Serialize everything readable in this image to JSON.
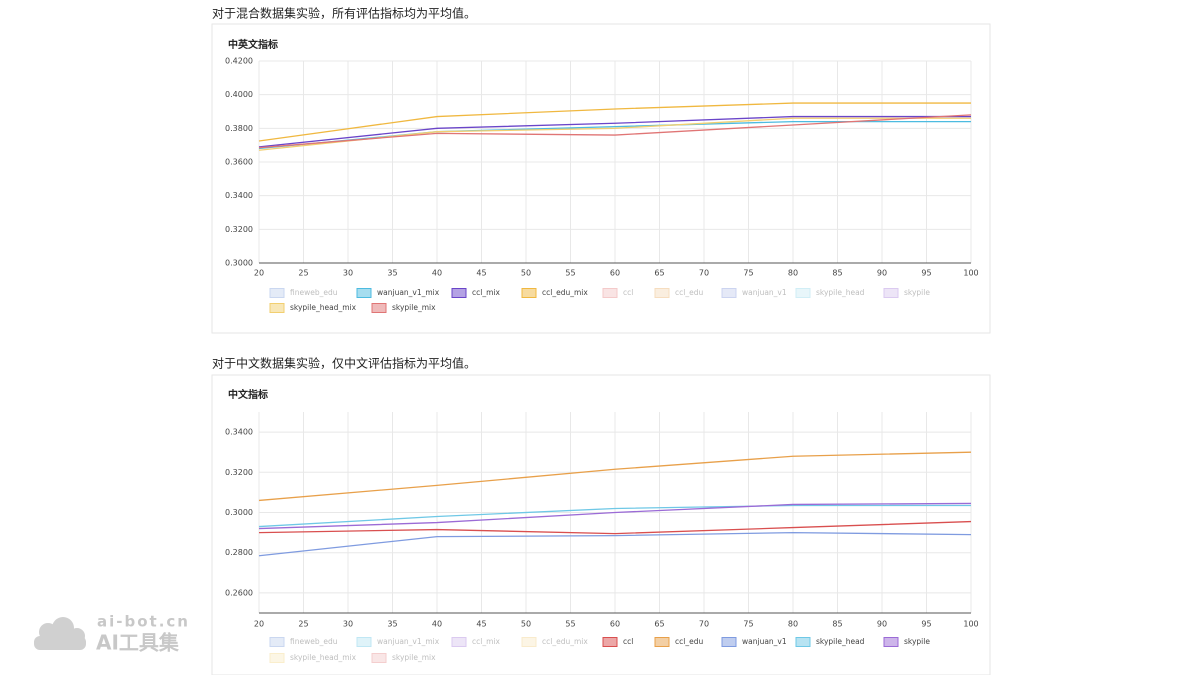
{
  "captions": [
    "对于混合数据集实验，所有评估指标均为平均值。",
    "对于中文数据集实验，仅中文评估指标为平均值。"
  ],
  "watermark": {
    "domain": "ai-bot.cn",
    "name": "AI工具集"
  },
  "chart_data": [
    {
      "type": "line",
      "title": "中英文指标",
      "grid": true,
      "x": [
        20,
        40,
        60,
        80,
        100
      ],
      "xlim": [
        20,
        100
      ],
      "xticks": [
        20,
        25,
        30,
        35,
        40,
        45,
        50,
        55,
        60,
        65,
        70,
        75,
        80,
        85,
        90,
        95,
        100
      ],
      "ylim": [
        0.3,
        0.42
      ],
      "yticks": [
        {
          "value": 0.3,
          "label": "0.3000"
        },
        {
          "value": 0.32,
          "label": "0.3200"
        },
        {
          "value": 0.34,
          "label": "0.3400"
        },
        {
          "value": 0.36,
          "label": "0.3600"
        },
        {
          "value": 0.38,
          "label": "0.3800"
        },
        {
          "value": 0.4,
          "label": "0.4000"
        },
        {
          "value": 0.42,
          "label": "0.4200"
        }
      ],
      "series": [
        {
          "name": "fineweb_edu",
          "color": "#6a8fd6",
          "hidden": true
        },
        {
          "name": "wanjuan_v1_mix",
          "color": "#4dbbe0",
          "values": [
            0.368,
            0.378,
            0.381,
            0.384,
            0.384
          ]
        },
        {
          "name": "ccl_mix",
          "color": "#6a45c9",
          "values": [
            0.369,
            0.38,
            0.383,
            0.387,
            0.387
          ]
        },
        {
          "name": "ccl_edu_mix",
          "color": "#f0b840",
          "values": [
            0.3725,
            0.387,
            0.3915,
            0.395,
            0.395
          ]
        },
        {
          "name": "ccl",
          "color": "#e06a6a",
          "hidden": true
        },
        {
          "name": "ccl_edu",
          "color": "#e8a04a",
          "hidden": true
        },
        {
          "name": "wanjuan_v1",
          "color": "#6f86d6",
          "hidden": true
        },
        {
          "name": "skypile_head",
          "color": "#7dd0e8",
          "hidden": true
        },
        {
          "name": "skypile",
          "color": "#9b6bd6",
          "hidden": true
        },
        {
          "name": "skypile_head_mix",
          "color": "#f2cf70",
          "values": [
            0.367,
            0.378,
            0.38,
            0.386,
            0.386
          ]
        },
        {
          "name": "skypile_mix",
          "color": "#e07575",
          "values": [
            0.3685,
            0.377,
            0.376,
            0.382,
            0.388
          ]
        }
      ]
    },
    {
      "type": "line",
      "title": "中文指标",
      "grid": true,
      "x": [
        20,
        40,
        60,
        80,
        100
      ],
      "xlim": [
        20,
        100
      ],
      "xticks": [
        20,
        25,
        30,
        35,
        40,
        45,
        50,
        55,
        60,
        65,
        70,
        75,
        80,
        85,
        90,
        95,
        100
      ],
      "ylim": [
        0.25,
        0.35
      ],
      "yticks": [
        {
          "value": 0.26,
          "label": "0.2600"
        },
        {
          "value": 0.28,
          "label": "0.2800"
        },
        {
          "value": 0.3,
          "label": "0.3000"
        },
        {
          "value": 0.32,
          "label": "0.3200"
        },
        {
          "value": 0.34,
          "label": "0.3400"
        }
      ],
      "series": [
        {
          "name": "fineweb_edu",
          "color": "#6a8fd6",
          "hidden": true
        },
        {
          "name": "wanjuan_v1_mix",
          "color": "#4dbbe0",
          "hidden": true
        },
        {
          "name": "ccl_mix",
          "color": "#9b6bd6",
          "hidden": true
        },
        {
          "name": "ccl_edu_mix",
          "color": "#f0c870",
          "hidden": true
        },
        {
          "name": "ccl",
          "color": "#d94f4f",
          "values": [
            0.29,
            0.2915,
            0.2895,
            0.2925,
            0.2955
          ]
        },
        {
          "name": "ccl_edu",
          "color": "#e8a04a",
          "values": [
            0.306,
            0.3135,
            0.3215,
            0.328,
            0.33
          ]
        },
        {
          "name": "wanjuan_v1",
          "color": "#7f9be0",
          "values": [
            0.2785,
            0.288,
            0.2885,
            0.29,
            0.289
          ]
        },
        {
          "name": "skypile_head",
          "color": "#6fc8e6",
          "values": [
            0.293,
            0.298,
            0.302,
            0.3035,
            0.3035
          ]
        },
        {
          "name": "skypile",
          "color": "#9b6bd6",
          "values": [
            0.292,
            0.295,
            0.3,
            0.304,
            0.3045
          ]
        },
        {
          "name": "skypile_head_mix",
          "color": "#f2cf70",
          "hidden": true
        },
        {
          "name": "skypile_mix",
          "color": "#e07575",
          "hidden": true
        }
      ]
    }
  ]
}
